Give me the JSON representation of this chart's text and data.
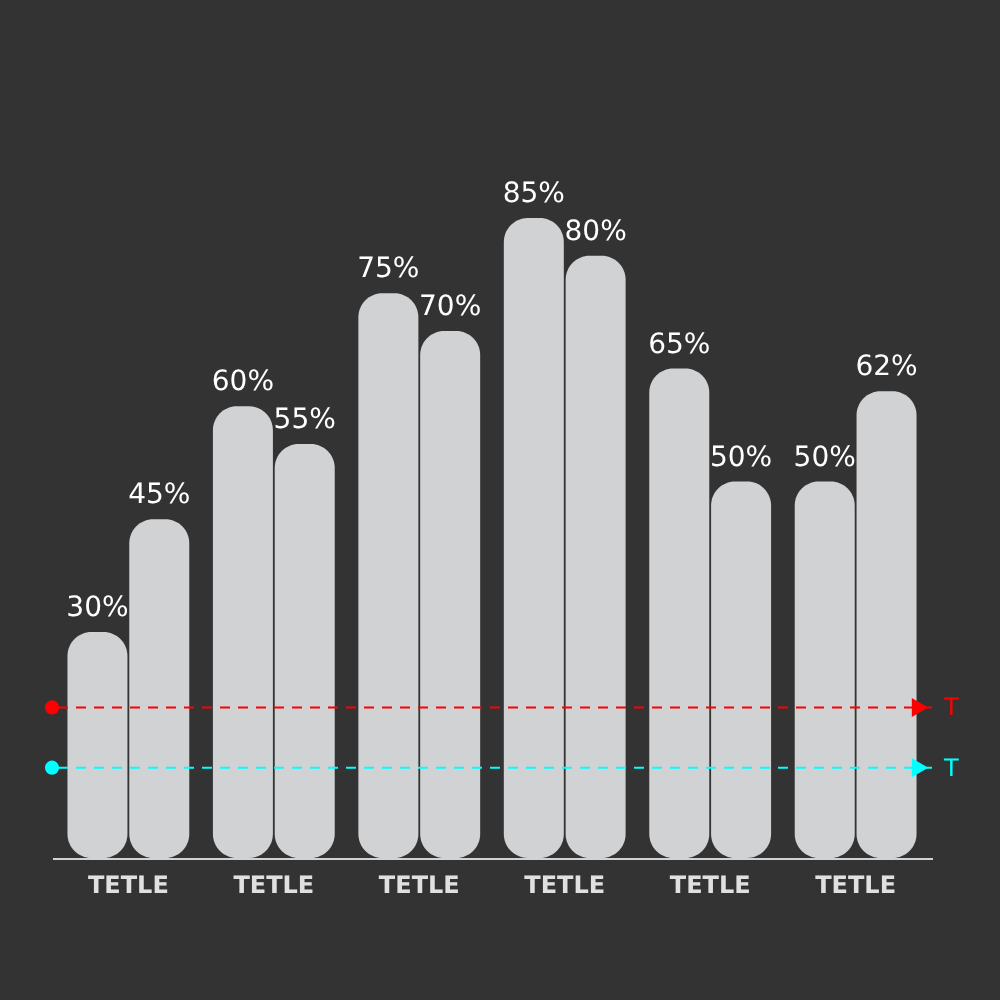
{
  "chart_data": {
    "type": "bar",
    "categories": [
      "TETLE",
      "TETLE",
      "TETLE",
      "TETLE",
      "TETLE",
      "TETLE"
    ],
    "series": [
      {
        "color": "#d1d2d4",
        "values": [
          30,
          60,
          75,
          85,
          65,
          50
        ],
        "value_labels": [
          "30%",
          "60%",
          "75%",
          "85%",
          "65%",
          "50%"
        ]
      },
      {
        "color": "#d1d2d4",
        "values": [
          45,
          55,
          70,
          80,
          50,
          62
        ],
        "value_labels": [
          "45%",
          "55%",
          "70%",
          "80%",
          "50%",
          "62%"
        ]
      }
    ],
    "tick_labels": "x",
    "ref_lines": [
      {
        "axis": "y",
        "value": 20,
        "label": "T",
        "color": "#ff0000",
        "line_style": "dashed"
      },
      {
        "axis": "y",
        "value": 12,
        "label": "T",
        "color": "#00ffff",
        "line_style": "dashed"
      }
    ]
  }
}
